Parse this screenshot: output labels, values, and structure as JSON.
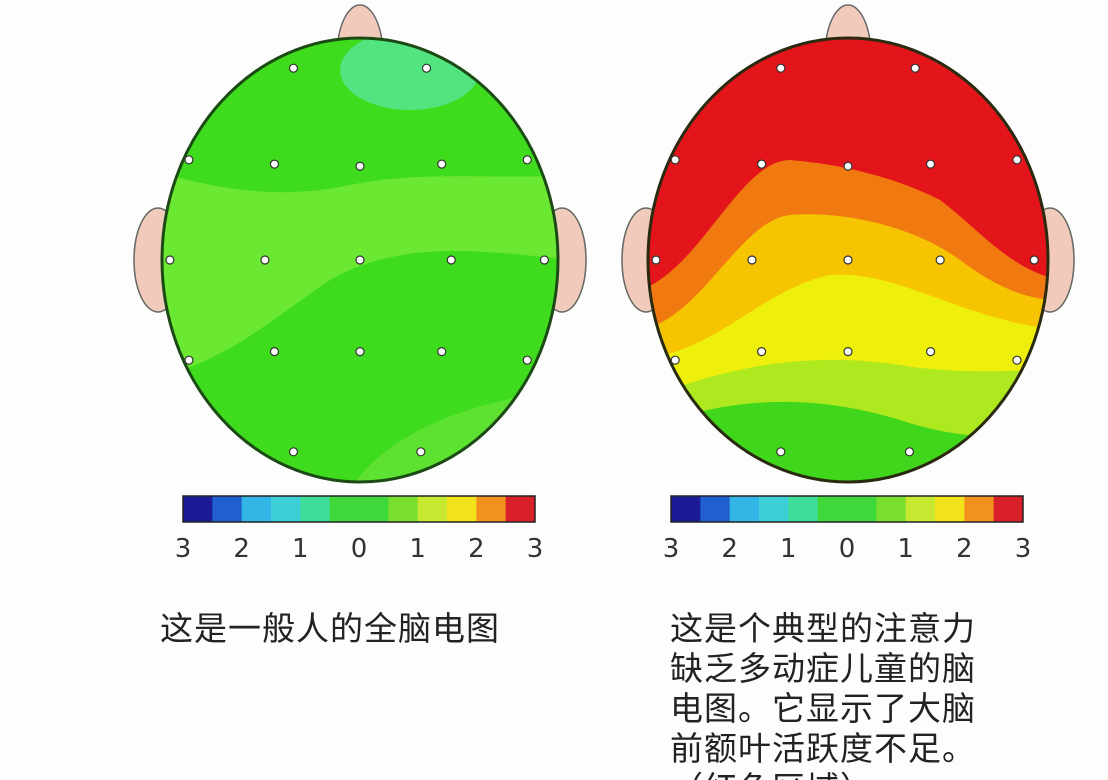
{
  "left": {
    "colorbar": {
      "ticks": [
        "3",
        "2",
        "1",
        "0",
        "1",
        "2",
        "3"
      ]
    },
    "caption": "这是一般人的全脑电图"
  },
  "right": {
    "colorbar": {
      "ticks": [
        "3",
        "2",
        "1",
        "0",
        "1",
        "2",
        "3"
      ]
    },
    "caption": [
      "这是个典型的注意力",
      "缺乏多动症儿童的脑",
      "电图。它显示了大脑",
      "前额叶活跃度不足。",
      "（红色区域）"
    ]
  }
}
